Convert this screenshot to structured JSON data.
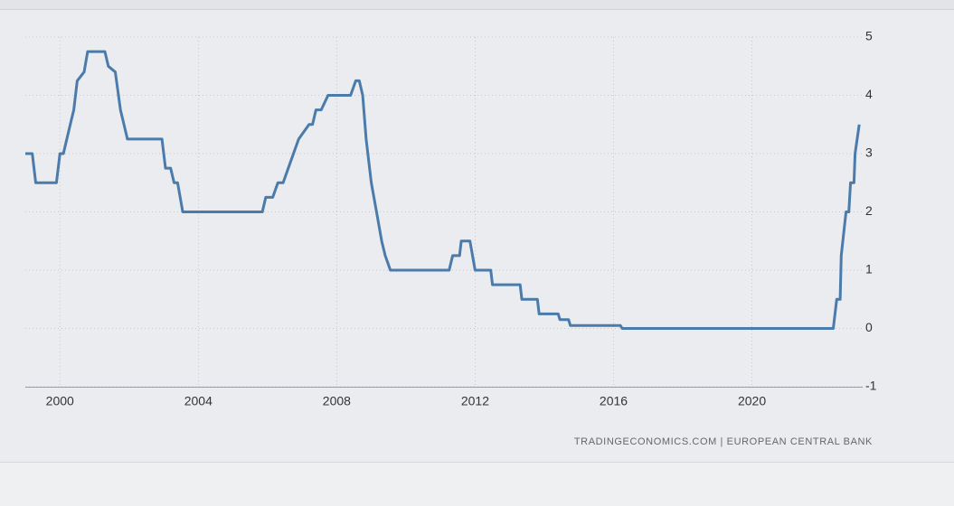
{
  "chart_data": {
    "type": "line",
    "source": "TRADINGECONOMICS.COM  |  EUROPEAN CENTRAL BANK",
    "xlim": [
      1999,
      2023.2
    ],
    "xticks": [
      2000,
      2004,
      2008,
      2012,
      2016,
      2020
    ],
    "ylim": [
      -1,
      5
    ],
    "yticks": [
      -1,
      0,
      1,
      2,
      3,
      4,
      5
    ],
    "grid": true,
    "series": [
      {
        "color": "#4a7bab",
        "x": [
          1999.0,
          1999.2,
          1999.3,
          1999.9,
          2000.0,
          2000.1,
          2000.2,
          2000.3,
          2000.4,
          2000.5,
          2000.7,
          2000.8,
          2001.3,
          2001.4,
          2001.6,
          2001.75,
          2001.85,
          2001.95,
          2002.95,
          2003.05,
          2003.2,
          2003.3,
          2003.4,
          2003.55,
          2005.85,
          2005.95,
          2006.15,
          2006.3,
          2006.45,
          2006.6,
          2006.9,
          2007.2,
          2007.3,
          2007.4,
          2007.55,
          2007.75,
          2008.4,
          2008.55,
          2008.65,
          2008.75,
          2008.85,
          2009.0,
          2009.15,
          2009.3,
          2009.4,
          2009.55,
          2011.25,
          2011.35,
          2011.55,
          2011.6,
          2011.85,
          2012.0,
          2012.45,
          2012.5,
          2013.3,
          2013.35,
          2013.8,
          2013.85,
          2014.4,
          2014.45,
          2014.7,
          2014.75,
          2016.2,
          2016.25,
          2022.35,
          2022.45,
          2022.55,
          2022.58,
          2022.72,
          2022.8,
          2022.85,
          2022.95,
          2022.98,
          2023.1
        ],
        "values": [
          3,
          3,
          2.5,
          2.5,
          3,
          3,
          3.25,
          3.5,
          3.75,
          4.25,
          4.4,
          4.75,
          4.75,
          4.5,
          4.4,
          3.75,
          3.5,
          3.25,
          3.25,
          2.75,
          2.75,
          2.5,
          2.5,
          2.0,
          2.0,
          2.25,
          2.25,
          2.5,
          2.5,
          2.75,
          3.25,
          3.5,
          3.5,
          3.75,
          3.75,
          4.0,
          4.0,
          4.25,
          4.25,
          4.0,
          3.25,
          2.5,
          2.0,
          1.5,
          1.25,
          1.0,
          1.0,
          1.25,
          1.25,
          1.5,
          1.5,
          1.0,
          1.0,
          0.75,
          0.75,
          0.5,
          0.5,
          0.25,
          0.25,
          0.15,
          0.15,
          0.05,
          0.05,
          0,
          0,
          0.5,
          0.5,
          1.25,
          2.0,
          2.0,
          2.5,
          2.5,
          3.0,
          3.5
        ]
      }
    ]
  }
}
